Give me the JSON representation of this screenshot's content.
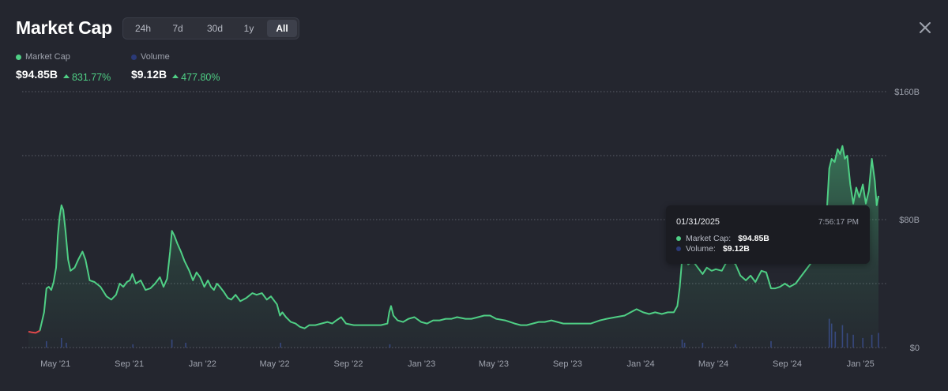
{
  "header": {
    "title": "Market Cap",
    "ranges": [
      {
        "label": "24h",
        "active": false
      },
      {
        "label": "7d",
        "active": false
      },
      {
        "label": "30d",
        "active": false
      },
      {
        "label": "1y",
        "active": false
      },
      {
        "label": "All",
        "active": true
      }
    ]
  },
  "legend": {
    "market_cap": {
      "label": "Market Cap",
      "value": "$94.85B",
      "change": "831.77%",
      "color": "#4fcf85"
    },
    "volume": {
      "label": "Volume",
      "value": "$9.12B",
      "change": "477.80%",
      "color": "#2b3a78"
    }
  },
  "tooltip": {
    "date": "01/31/2025",
    "time": "7:56:17 PM",
    "market_cap_label": "Market Cap:",
    "market_cap_value": "$94.85B",
    "volume_label": "Volume:",
    "volume_value": "$9.12B"
  },
  "colors": {
    "background": "#24262f",
    "line": "#4fcf85",
    "line_start": "#e0484a",
    "grid": "#5a5d68",
    "volume_bar": "#3a4a8c"
  },
  "chart_data": {
    "type": "area",
    "ylim": [
      0,
      160
    ],
    "y_unit": "B",
    "y_tick_labels": [
      {
        "value": 160,
        "label": "$160B"
      },
      {
        "value": 80,
        "label": "$80B"
      },
      {
        "value": 0,
        "label": "$0"
      }
    ],
    "gridlines": [
      160,
      120,
      80,
      40,
      0
    ],
    "x_tick_labels": [
      "May '21",
      "Sep '21",
      "Jan '22",
      "May '22",
      "Sep '22",
      "Jan '23",
      "May '23",
      "Sep '23",
      "Jan '24",
      "May '24",
      "Sep '24",
      "Jan '25"
    ],
    "x_tick_dates": [
      "2021-05-01",
      "2021-09-01",
      "2022-01-01",
      "2022-05-01",
      "2022-09-01",
      "2023-01-01",
      "2023-05-01",
      "2023-09-01",
      "2024-01-01",
      "2024-05-01",
      "2024-09-01",
      "2025-01-01"
    ],
    "x_range": [
      "2021-03-17",
      "2025-01-31"
    ],
    "series": [
      {
        "name": "Market Cap",
        "points": [
          [
            "2021-03-17",
            10
          ],
          [
            "2021-03-23",
            9.5
          ],
          [
            "2021-03-29",
            9.2
          ],
          [
            "2021-04-05",
            10.5
          ],
          [
            "2021-04-12",
            22
          ],
          [
            "2021-04-16",
            37
          ],
          [
            "2021-04-20",
            38
          ],
          [
            "2021-04-24",
            36
          ],
          [
            "2021-04-28",
            41
          ],
          [
            "2021-05-02",
            50
          ],
          [
            "2021-05-05",
            70
          ],
          [
            "2021-05-08",
            82
          ],
          [
            "2021-05-11",
            89
          ],
          [
            "2021-05-14",
            86
          ],
          [
            "2021-05-18",
            72
          ],
          [
            "2021-05-22",
            55
          ],
          [
            "2021-05-26",
            48
          ],
          [
            "2021-06-02",
            50
          ],
          [
            "2021-06-08",
            55
          ],
          [
            "2021-06-15",
            60
          ],
          [
            "2021-06-20",
            55
          ],
          [
            "2021-06-27",
            42
          ],
          [
            "2021-07-05",
            41
          ],
          [
            "2021-07-15",
            38
          ],
          [
            "2021-07-25",
            32
          ],
          [
            "2021-08-02",
            30
          ],
          [
            "2021-08-10",
            33
          ],
          [
            "2021-08-16",
            40
          ],
          [
            "2021-08-22",
            38
          ],
          [
            "2021-08-28",
            41
          ],
          [
            "2021-09-02",
            42
          ],
          [
            "2021-09-06",
            46
          ],
          [
            "2021-09-12",
            40
          ],
          [
            "2021-09-20",
            42
          ],
          [
            "2021-09-28",
            36
          ],
          [
            "2021-10-06",
            37
          ],
          [
            "2021-10-14",
            40
          ],
          [
            "2021-10-22",
            44
          ],
          [
            "2021-10-28",
            38
          ],
          [
            "2021-11-03",
            43
          ],
          [
            "2021-11-08",
            60
          ],
          [
            "2021-11-11",
            73
          ],
          [
            "2021-11-15",
            70
          ],
          [
            "2021-11-20",
            65
          ],
          [
            "2021-11-26",
            60
          ],
          [
            "2021-12-02",
            54
          ],
          [
            "2021-12-10",
            48
          ],
          [
            "2021-12-16",
            42
          ],
          [
            "2021-12-22",
            47
          ],
          [
            "2021-12-28",
            44
          ],
          [
            "2022-01-04",
            38
          ],
          [
            "2022-01-10",
            42
          ],
          [
            "2022-01-15",
            38
          ],
          [
            "2022-01-20",
            36
          ],
          [
            "2022-01-25",
            40
          ],
          [
            "2022-01-30",
            38
          ],
          [
            "2022-02-05",
            35
          ],
          [
            "2022-02-12",
            31
          ],
          [
            "2022-02-18",
            30
          ],
          [
            "2022-02-25",
            33
          ],
          [
            "2022-03-05",
            29
          ],
          [
            "2022-03-15",
            31
          ],
          [
            "2022-03-25",
            34
          ],
          [
            "2022-04-01",
            33
          ],
          [
            "2022-04-10",
            34
          ],
          [
            "2022-04-18",
            30
          ],
          [
            "2022-04-25",
            32
          ],
          [
            "2022-05-05",
            27
          ],
          [
            "2022-05-10",
            20
          ],
          [
            "2022-05-14",
            22
          ],
          [
            "2022-05-20",
            19
          ],
          [
            "2022-05-28",
            16
          ],
          [
            "2022-06-05",
            15
          ],
          [
            "2022-06-12",
            13
          ],
          [
            "2022-06-20",
            12
          ],
          [
            "2022-06-28",
            14
          ],
          [
            "2022-07-08",
            14
          ],
          [
            "2022-07-18",
            15
          ],
          [
            "2022-07-28",
            16
          ],
          [
            "2022-08-05",
            15
          ],
          [
            "2022-08-12",
            17
          ],
          [
            "2022-08-20",
            19
          ],
          [
            "2022-08-28",
            15
          ],
          [
            "2022-09-10",
            14
          ],
          [
            "2022-09-25",
            14
          ],
          [
            "2022-10-10",
            14
          ],
          [
            "2022-10-25",
            14
          ],
          [
            "2022-11-05",
            15
          ],
          [
            "2022-11-08",
            22
          ],
          [
            "2022-11-11",
            26
          ],
          [
            "2022-11-15",
            20
          ],
          [
            "2022-11-22",
            17
          ],
          [
            "2022-12-01",
            16
          ],
          [
            "2022-12-10",
            18
          ],
          [
            "2022-12-20",
            19
          ],
          [
            "2022-12-31",
            16
          ],
          [
            "2023-01-10",
            15
          ],
          [
            "2023-01-20",
            17
          ],
          [
            "2023-01-31",
            17
          ],
          [
            "2023-02-10",
            18
          ],
          [
            "2023-02-20",
            18
          ],
          [
            "2023-03-01",
            19
          ],
          [
            "2023-03-15",
            18
          ],
          [
            "2023-03-25",
            18
          ],
          [
            "2023-04-05",
            19
          ],
          [
            "2023-04-15",
            20
          ],
          [
            "2023-04-25",
            20
          ],
          [
            "2023-05-05",
            18
          ],
          [
            "2023-05-20",
            17
          ],
          [
            "2023-06-05",
            15
          ],
          [
            "2023-06-15",
            14
          ],
          [
            "2023-06-25",
            14
          ],
          [
            "2023-07-05",
            15
          ],
          [
            "2023-07-15",
            16
          ],
          [
            "2023-07-25",
            16
          ],
          [
            "2023-08-05",
            17
          ],
          [
            "2023-08-15",
            16
          ],
          [
            "2023-08-25",
            15
          ],
          [
            "2023-09-10",
            15
          ],
          [
            "2023-09-25",
            15
          ],
          [
            "2023-10-10",
            15
          ],
          [
            "2023-10-25",
            17
          ],
          [
            "2023-11-05",
            18
          ],
          [
            "2023-11-20",
            19
          ],
          [
            "2023-12-05",
            20
          ],
          [
            "2023-12-15",
            22
          ],
          [
            "2023-12-25",
            24
          ],
          [
            "2024-01-05",
            22
          ],
          [
            "2024-01-15",
            21
          ],
          [
            "2024-01-25",
            22
          ],
          [
            "2024-02-05",
            21
          ],
          [
            "2024-02-15",
            22
          ],
          [
            "2024-02-25",
            22
          ],
          [
            "2024-03-02",
            26
          ],
          [
            "2024-03-06",
            38
          ],
          [
            "2024-03-10",
            56
          ],
          [
            "2024-03-14",
            60
          ],
          [
            "2024-03-20",
            52
          ],
          [
            "2024-03-28",
            54
          ],
          [
            "2024-04-05",
            50
          ],
          [
            "2024-04-13",
            46
          ],
          [
            "2024-04-20",
            50
          ],
          [
            "2024-04-28",
            48
          ],
          [
            "2024-05-05",
            49
          ],
          [
            "2024-05-15",
            48
          ],
          [
            "2024-05-25",
            55
          ],
          [
            "2024-06-01",
            54
          ],
          [
            "2024-06-07",
            52
          ],
          [
            "2024-06-15",
            45
          ],
          [
            "2024-06-24",
            42
          ],
          [
            "2024-07-02",
            45
          ],
          [
            "2024-07-10",
            41
          ],
          [
            "2024-07-20",
            48
          ],
          [
            "2024-07-28",
            47
          ],
          [
            "2024-08-05",
            37
          ],
          [
            "2024-08-12",
            37
          ],
          [
            "2024-08-20",
            38
          ],
          [
            "2024-08-28",
            40
          ],
          [
            "2024-09-05",
            38
          ],
          [
            "2024-09-15",
            40
          ],
          [
            "2024-09-25",
            45
          ],
          [
            "2024-10-05",
            50
          ],
          [
            "2024-10-15",
            55
          ],
          [
            "2024-10-25",
            60
          ],
          [
            "2024-11-01",
            70
          ],
          [
            "2024-11-06",
            85
          ],
          [
            "2024-11-10",
            112
          ],
          [
            "2024-11-14",
            118
          ],
          [
            "2024-11-19",
            116
          ],
          [
            "2024-11-24",
            124
          ],
          [
            "2024-11-28",
            121
          ],
          [
            "2024-12-02",
            126
          ],
          [
            "2024-12-06",
            118
          ],
          [
            "2024-12-10",
            120
          ],
          [
            "2024-12-15",
            102
          ],
          [
            "2024-12-20",
            90
          ],
          [
            "2024-12-25",
            100
          ],
          [
            "2024-12-30",
            94
          ],
          [
            "2025-01-05",
            102
          ],
          [
            "2025-01-10",
            90
          ],
          [
            "2025-01-15",
            98
          ],
          [
            "2025-01-20",
            118
          ],
          [
            "2025-01-25",
            104
          ],
          [
            "2025-01-28",
            89
          ],
          [
            "2025-01-31",
            94.85
          ]
        ]
      },
      {
        "name": "Volume",
        "points": [
          [
            "2021-04-16",
            4
          ],
          [
            "2021-05-11",
            6
          ],
          [
            "2021-05-19",
            3
          ],
          [
            "2021-09-07",
            2
          ],
          [
            "2021-11-11",
            5
          ],
          [
            "2021-12-04",
            3
          ],
          [
            "2022-05-11",
            3
          ],
          [
            "2022-11-09",
            2
          ],
          [
            "2024-03-10",
            5
          ],
          [
            "2024-03-14",
            3
          ],
          [
            "2024-04-13",
            3
          ],
          [
            "2024-06-07",
            2
          ],
          [
            "2024-08-05",
            4
          ],
          [
            "2024-11-10",
            18
          ],
          [
            "2024-11-14",
            15
          ],
          [
            "2024-11-20",
            10
          ],
          [
            "2024-12-02",
            14
          ],
          [
            "2024-12-10",
            9
          ],
          [
            "2024-12-20",
            8
          ],
          [
            "2025-01-05",
            6
          ],
          [
            "2025-01-20",
            8
          ],
          [
            "2025-01-31",
            9.12
          ]
        ]
      }
    ]
  }
}
